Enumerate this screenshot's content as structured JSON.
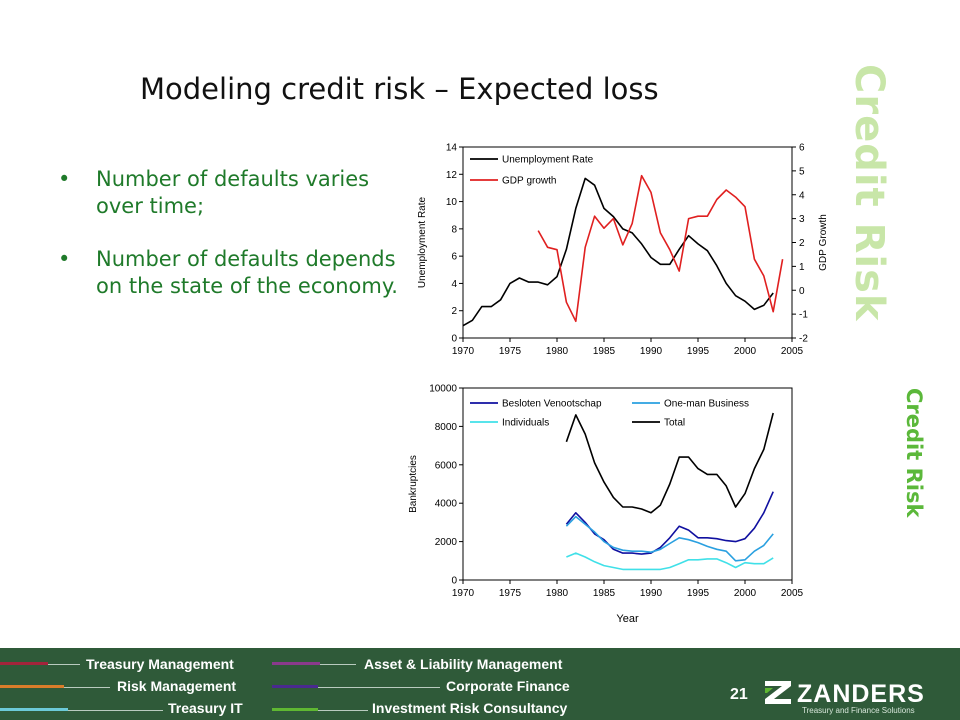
{
  "slide": {
    "title": "Modeling credit risk – Expected loss",
    "bullets": [
      "Number of defaults varies over time;",
      "Number of defaults depends on the state of the economy."
    ],
    "side_label_large": "Credit Risk",
    "side_label_small": "Credit Risk",
    "page_number": "21"
  },
  "footer": {
    "links_left": [
      "Treasury Management",
      "Risk Management",
      "Treasury IT"
    ],
    "links_right": [
      "Asset & Liability Management",
      "Corporate Finance",
      "Investment Risk Consultancy"
    ],
    "logo_text": "ZANDERS",
    "logo_tagline": "Treasury and Finance Solutions",
    "bar_colors": [
      "#a3243b",
      "#d97d2a",
      "#6ccad8",
      "#8a3a8c",
      "#4a2a8f",
      "#5fb832"
    ]
  },
  "chart_data": [
    {
      "type": "line",
      "title": "",
      "xlabel": "",
      "ylabel": "Unemployment Rate",
      "y2label": "GDP Growth",
      "xlim": [
        1970,
        2005
      ],
      "ylim": [
        0,
        14
      ],
      "y2lim": [
        -2,
        6
      ],
      "x_ticks": [
        1970,
        1975,
        1980,
        1985,
        1990,
        1995,
        2000,
        2005
      ],
      "y_ticks": [
        0,
        2,
        4,
        6,
        8,
        10,
        12,
        14
      ],
      "y2_ticks": [
        -2,
        -1,
        0,
        1,
        2,
        3,
        4,
        5,
        6
      ],
      "legend": "top-left",
      "series": [
        {
          "name": "Unemployment Rate",
          "axis": "left",
          "color": "#000000",
          "x": [
            1970,
            1971,
            1972,
            1973,
            1974,
            1975,
            1976,
            1977,
            1978,
            1979,
            1980,
            1981,
            1982,
            1983,
            1984,
            1985,
            1986,
            1987,
            1988,
            1989,
            1990,
            1991,
            1992,
            1993,
            1994,
            1995,
            1996,
            1997,
            1998,
            1999,
            2000,
            2001,
            2002,
            2003
          ],
          "values": [
            0.9,
            1.3,
            2.3,
            2.3,
            2.8,
            4.0,
            4.4,
            4.1,
            4.1,
            3.9,
            4.5,
            6.5,
            9.5,
            11.7,
            11.2,
            9.5,
            8.9,
            8.0,
            7.7,
            6.9,
            5.9,
            5.4,
            5.4,
            6.5,
            7.5,
            6.9,
            6.4,
            5.3,
            4.0,
            3.1,
            2.7,
            2.1,
            2.4,
            3.3
          ]
        },
        {
          "name": "GDP growth",
          "axis": "right",
          "color": "#e02020",
          "x": [
            1978,
            1979,
            1980,
            1981,
            1982,
            1983,
            1984,
            1985,
            1986,
            1987,
            1988,
            1989,
            1990,
            1991,
            1992,
            1993,
            1994,
            1995,
            1996,
            1997,
            1998,
            1999,
            2000,
            2001,
            2002,
            2003,
            2004
          ],
          "values": [
            2.5,
            1.8,
            1.7,
            -0.5,
            -1.3,
            1.8,
            3.1,
            2.6,
            3.0,
            1.9,
            2.8,
            4.8,
            4.1,
            2.4,
            1.7,
            0.8,
            3.0,
            3.1,
            3.1,
            3.8,
            4.2,
            3.9,
            3.5,
            1.3,
            0.6,
            -0.9,
            1.3
          ]
        }
      ]
    },
    {
      "type": "line",
      "title": "",
      "xlabel": "Year",
      "ylabel": "Bankruptcies",
      "xlim": [
        1970,
        2005
      ],
      "ylim": [
        0,
        10000
      ],
      "x_ticks": [
        1970,
        1975,
        1980,
        1985,
        1990,
        1995,
        2000,
        2005
      ],
      "y_ticks": [
        0,
        2000,
        4000,
        6000,
        8000,
        10000
      ],
      "legend": "top",
      "series": [
        {
          "name": "Besloten Venootschap",
          "color": "#1010a0",
          "x": [
            1981,
            1982,
            1983,
            1984,
            1985,
            1986,
            1987,
            1988,
            1989,
            1990,
            1991,
            1992,
            1993,
            1994,
            1995,
            1996,
            1997,
            1998,
            1999,
            2000,
            2001,
            2002,
            2003
          ],
          "values": [
            2900,
            3500,
            3000,
            2400,
            2100,
            1600,
            1400,
            1400,
            1350,
            1400,
            1700,
            2200,
            2800,
            2600,
            2200,
            2200,
            2150,
            2050,
            2000,
            2150,
            2700,
            3500,
            4600
          ]
        },
        {
          "name": "One-man Business",
          "color": "#2aa0e0",
          "x": [
            1981,
            1982,
            1983,
            1984,
            1985,
            1986,
            1987,
            1988,
            1989,
            1990,
            1991,
            1992,
            1993,
            1994,
            1995,
            1996,
            1997,
            1998,
            1999,
            2000,
            2001,
            2002,
            2003
          ],
          "values": [
            2800,
            3300,
            2900,
            2500,
            2000,
            1700,
            1550,
            1500,
            1500,
            1450,
            1600,
            1900,
            2200,
            2100,
            1950,
            1750,
            1600,
            1500,
            1000,
            1050,
            1500,
            1800,
            2400
          ]
        },
        {
          "name": "Individuals",
          "color": "#40e0e8",
          "x": [
            1981,
            1982,
            1983,
            1984,
            1985,
            1986,
            1987,
            1988,
            1989,
            1990,
            1991,
            1992,
            1993,
            1994,
            1995,
            1996,
            1997,
            1998,
            1999,
            2000,
            2001,
            2002,
            2003
          ],
          "values": [
            1200,
            1400,
            1200,
            950,
            750,
            650,
            550,
            550,
            550,
            550,
            550,
            650,
            850,
            1050,
            1050,
            1100,
            1100,
            900,
            650,
            900,
            850,
            850,
            1150
          ]
        },
        {
          "name": "Total",
          "color": "#000000",
          "x": [
            1981,
            1982,
            1983,
            1984,
            1985,
            1986,
            1987,
            1988,
            1989,
            1990,
            1991,
            1992,
            1993,
            1994,
            1995,
            1996,
            1997,
            1998,
            1999,
            2000,
            2001,
            2002,
            2003
          ],
          "values": [
            7200,
            8600,
            7600,
            6100,
            5100,
            4300,
            3800,
            3800,
            3700,
            3500,
            3900,
            5000,
            6400,
            6400,
            5800,
            5500,
            5500,
            4900,
            3800,
            4500,
            5800,
            6800,
            8700
          ]
        }
      ]
    }
  ]
}
